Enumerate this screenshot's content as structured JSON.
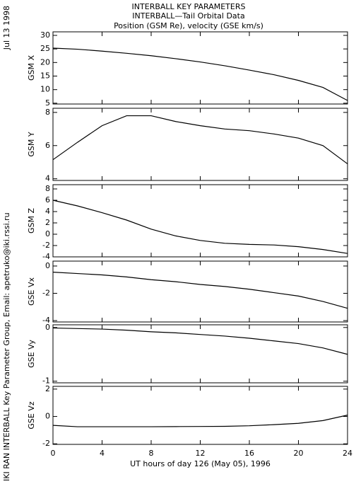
{
  "title_lines": [
    "INTERBALL KEY PARAMETERS",
    "INTERBALL—Tail Orbital Data",
    "Position (GSM Re), velocity (GSE km/s)"
  ],
  "date": "Jul 13 1998",
  "credit": "IKI RAN INTERBALL Key Parameter Group, Email: apetruko@iki.rssi.ru",
  "chart_data": [
    {
      "type": "line",
      "ylabel": "GSM X",
      "x": [
        0,
        2,
        4,
        6,
        8,
        10,
        12,
        14,
        16,
        18,
        20,
        22,
        24
      ],
      "values": [
        25.3,
        24.9,
        24.2,
        23.4,
        22.5,
        21.4,
        20.2,
        18.8,
        17.2,
        15.5,
        13.4,
        10.8,
        6.0
      ],
      "xlim": [
        0,
        24
      ],
      "ylim": [
        4.7,
        31.3
      ],
      "yticks": [
        5,
        10,
        15,
        20,
        25,
        30
      ],
      "color": "#000000"
    },
    {
      "type": "line",
      "ylabel": "GSM Y",
      "x": [
        0,
        2,
        4,
        6,
        8,
        10,
        12,
        14,
        16,
        18,
        20,
        22,
        24
      ],
      "values": [
        5.15,
        6.2,
        7.2,
        7.8,
        7.8,
        7.45,
        7.2,
        7.0,
        6.9,
        6.7,
        6.45,
        6.0,
        4.9
      ],
      "xlim": [
        0,
        24
      ],
      "ylim": [
        3.9,
        8.25
      ],
      "yticks": [
        4,
        6,
        8
      ],
      "color": "#000000"
    },
    {
      "type": "line",
      "ylabel": "GSM Z",
      "x": [
        0,
        2,
        4,
        6,
        8,
        10,
        12,
        14,
        16,
        18,
        20,
        22,
        24
      ],
      "values": [
        6.0,
        5.0,
        3.8,
        2.5,
        0.9,
        -0.3,
        -1.1,
        -1.6,
        -1.8,
        -1.9,
        -2.2,
        -2.7,
        -3.4
      ],
      "xlim": [
        0,
        24
      ],
      "ylim": [
        -4,
        8.75
      ],
      "yticks": [
        -4,
        -2,
        0,
        2,
        4,
        6,
        8
      ],
      "color": "#000000"
    },
    {
      "type": "line",
      "ylabel": "GSE Vx",
      "x": [
        0,
        2,
        4,
        6,
        8,
        10,
        12,
        14,
        16,
        18,
        20,
        22,
        24
      ],
      "values": [
        -0.45,
        -0.55,
        -0.65,
        -0.8,
        -1.0,
        -1.15,
        -1.35,
        -1.5,
        -1.7,
        -1.95,
        -2.2,
        -2.6,
        -3.1
      ],
      "xlim": [
        0,
        24
      ],
      "ylim": [
        -4.1,
        0.36
      ],
      "yticks": [
        -4,
        -2,
        0
      ],
      "color": "#000000"
    },
    {
      "type": "line",
      "ylabel": "GSE Vy",
      "x": [
        0,
        2,
        4,
        6,
        8,
        10,
        12,
        14,
        16,
        18,
        20,
        22,
        24
      ],
      "values": [
        -0.01,
        -0.02,
        -0.03,
        -0.05,
        -0.08,
        -0.1,
        -0.13,
        -0.16,
        -0.2,
        -0.25,
        -0.3,
        -0.38,
        -0.5
      ],
      "xlim": [
        0,
        24
      ],
      "ylim": [
        -1.03,
        0.05
      ],
      "yticks": [
        -1,
        0
      ],
      "color": "#000000"
    },
    {
      "type": "line",
      "ylabel": "GSE Vz",
      "x": [
        0,
        2,
        4,
        6,
        8,
        10,
        12,
        14,
        16,
        18,
        20,
        22,
        24
      ],
      "values": [
        -0.65,
        -0.75,
        -0.75,
        -0.75,
        -0.75,
        -0.74,
        -0.73,
        -0.72,
        -0.68,
        -0.6,
        -0.5,
        -0.3,
        0.1
      ],
      "xlim": [
        0,
        24
      ],
      "ylim": [
        -2.04,
        2.2
      ],
      "yticks": [
        -2,
        0,
        2
      ],
      "color": "#000000",
      "xticks": [
        0,
        4,
        8,
        12,
        16,
        20,
        24
      ],
      "xlabel": "UT hours of day 126 (May 05), 1996"
    }
  ]
}
